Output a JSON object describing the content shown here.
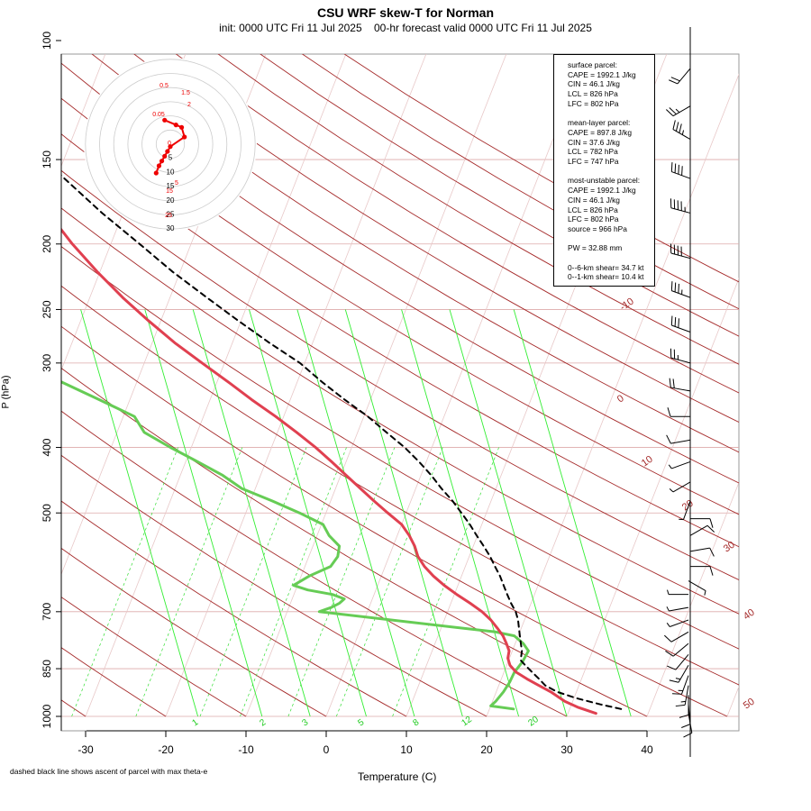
{
  "title": "CSU WRF skew-T for Norman",
  "subtitle": "init: 0000 UTC Fri 11 Jul 2025    00-hr forecast valid 0000 UTC Fri 11 Jul 2025",
  "footnote": "dashed black line shows ascent of parcel with max theta-e",
  "colors": {
    "temperature": "#e04050",
    "dewpoint": "#66cc55",
    "parcel": "#000000",
    "isotherm": "#a52a2a",
    "mixing_ratio": "#22cc22",
    "hodograph": "#ee0000"
  },
  "stats": {
    "surface": {
      "header": "surface parcel:",
      "lines": [
        "CAPE = 1992.1 J/kg",
        "CIN = 46.1 J/kg",
        "LCL = 826 hPa",
        "LFC = 802 hPa"
      ]
    },
    "mean_layer": {
      "header": "mean-layer parcel:",
      "lines": [
        "CAPE = 897.8 J/kg",
        "CIN = 37.6 J/kg",
        "LCL = 782 hPa",
        "LFC = 747 hPa"
      ]
    },
    "most_unstable": {
      "header": "most-unstable parcel:",
      "lines": [
        "CAPE = 1992.1 J/kg",
        "CIN = 46.1 J/kg",
        "LCL = 826 hPa",
        "LFC = 802 hPa",
        "source = 966 hPa"
      ]
    },
    "pw": "PW =  32.88 mm",
    "shear_06": "0--6-km shear= 34.7 kt",
    "shear_01": "0--1-km shear= 10.4 kt"
  },
  "chart_data": {
    "type": "line",
    "xlabel": "Temperature (C)",
    "ylabel": "P (hPa)",
    "x_ticks": [
      -30,
      -20,
      -10,
      0,
      10,
      20,
      30,
      40
    ],
    "y_ticks": [
      100,
      150,
      200,
      250,
      300,
      400,
      500,
      700,
      850,
      1000
    ],
    "y_scale": "log",
    "isotherm_labels": [
      "-10",
      "0",
      "10",
      "20",
      "30",
      "40",
      "50"
    ],
    "mixing_ratio_labels": [
      "1",
      "2",
      "3",
      "5",
      "8",
      "12",
      "20"
    ],
    "temperature": {
      "p": [
        990,
        970,
        950,
        920,
        900,
        880,
        860,
        840,
        820,
        800,
        780,
        760,
        740,
        720,
        700,
        680,
        660,
        640,
        620,
        600,
        580,
        560,
        540,
        520,
        500,
        480,
        460,
        440,
        420,
        400,
        380,
        360,
        340,
        320,
        300,
        280,
        260,
        240,
        220,
        200,
        180,
        160,
        150,
        140,
        130,
        120,
        110,
        105
      ],
      "t": [
        33.5,
        31.0,
        29.0,
        26.8,
        25.0,
        23.2,
        21.5,
        20.4,
        19.8,
        19.6,
        18.9,
        18.1,
        17.0,
        15.8,
        14.3,
        12.4,
        10.3,
        8.3,
        6.5,
        4.9,
        3.6,
        2.7,
        1.5,
        0.0,
        -2.3,
        -4.6,
        -6.9,
        -9.3,
        -11.8,
        -14.5,
        -17.6,
        -21.0,
        -24.8,
        -28.6,
        -32.8,
        -37.2,
        -41.5,
        -45.9,
        -50.3,
        -54.8,
        -59.3,
        -63.0,
        -64.6,
        -66.0,
        -67.0,
        -67.4,
        -67.9,
        -68.1
      ]
    },
    "dewpoint": {
      "p": [
        975,
        965,
        950,
        920,
        890,
        860,
        830,
        800,
        780,
        760,
        750,
        700,
        690,
        680,
        670,
        660,
        650,
        640,
        620,
        600,
        580,
        560,
        540,
        520,
        500,
        480,
        460,
        440,
        420,
        400,
        380,
        360,
        340,
        320,
        300,
        280,
        260,
        240,
        220,
        200,
        180,
        160,
        150,
        140,
        130,
        120,
        110,
        105
      ],
      "d": [
        23.0,
        20.0,
        20.4,
        20.9,
        21.2,
        21.3,
        21.8,
        22.0,
        21.0,
        19.5,
        17.0,
        -6.0,
        -4.7,
        -3.9,
        -3.5,
        -5.2,
        -8.5,
        -10.5,
        -9.0,
        -6.8,
        -6.4,
        -6.7,
        -8.5,
        -9.8,
        -13.3,
        -17.3,
        -21.7,
        -24.7,
        -28.5,
        -32.6,
        -36.6,
        -38.6,
        -43.8,
        -49.4,
        -55.2,
        -60.2,
        -64.0,
        -67.1,
        -69.8,
        -72.8,
        -74.8,
        -76.8,
        -77.6,
        -78.1,
        -79.6,
        -80.7,
        -83.7,
        -85.1
      ]
    },
    "parcel": {
      "p": [
        975,
        960,
        940,
        920,
        900,
        880,
        860,
        840,
        826,
        800,
        780,
        760,
        740,
        720,
        700,
        680,
        660,
        640,
        620,
        600,
        580,
        560,
        540,
        520,
        500,
        480,
        460,
        440,
        420,
        400,
        380,
        360,
        340,
        320,
        300,
        280,
        260,
        240,
        220,
        200,
        180,
        160,
        150,
        140,
        130,
        120,
        110,
        105
      ],
      "t": [
        36.4,
        33.6,
        30.3,
        27.6,
        25.8,
        24.7,
        23.5,
        22.3,
        21.5,
        21.2,
        20.7,
        20.2,
        19.7,
        19.2,
        18.5,
        17.5,
        16.6,
        15.7,
        14.8,
        13.7,
        12.6,
        11.3,
        9.9,
        8.5,
        6.9,
        5.2,
        3.2,
        1.3,
        -0.9,
        -3.4,
        -6.4,
        -9.5,
        -13.2,
        -16.9,
        -20.6,
        -25.4,
        -30.3,
        -35.4,
        -40.9,
        -46.4,
        -52.6,
        -59.0,
        -62.4,
        -65.1,
        -68.6,
        -72.2,
        -76.1,
        -78.1
      ]
    },
    "parcel_label": "dashed black line shows ascent of parcel with max theta-e",
    "wind_profile": {
      "p": [
        990,
        960,
        930,
        900,
        870,
        840,
        810,
        780,
        750,
        720,
        690,
        660,
        630,
        600,
        570,
        540,
        510,
        480,
        450,
        420,
        390,
        360,
        330,
        300,
        270,
        240,
        210,
        180,
        160,
        140,
        125,
        110
      ],
      "speed_kt": [
        8,
        10,
        12,
        15,
        15,
        14,
        12,
        10,
        8,
        5,
        3,
        3,
        4,
        8,
        12,
        10,
        8,
        6,
        6,
        5,
        8,
        12,
        20,
        25,
        30,
        35,
        40,
        45,
        40,
        35,
        25,
        20
      ],
      "dir_deg": [
        170,
        175,
        180,
        190,
        200,
        210,
        220,
        230,
        240,
        250,
        260,
        270,
        120,
        90,
        80,
        60,
        90,
        200,
        240,
        250,
        260,
        270,
        280,
        285,
        290,
        290,
        285,
        285,
        290,
        300,
        240,
        220
      ]
    },
    "hodograph": {
      "ring_labels": [
        "5",
        "10",
        "15",
        "20",
        "25",
        "30"
      ],
      "point_labels": [
        "0.5",
        "1.5",
        "2",
        "0.05",
        "0",
        "5",
        "15",
        "25"
      ],
      "u": [
        -2,
        2,
        4,
        5,
        0,
        -1,
        -2,
        -3,
        -4,
        -5
      ],
      "v": [
        10,
        8,
        7,
        3,
        -1,
        -3,
        -5,
        -7,
        -9,
        -12
      ]
    }
  }
}
